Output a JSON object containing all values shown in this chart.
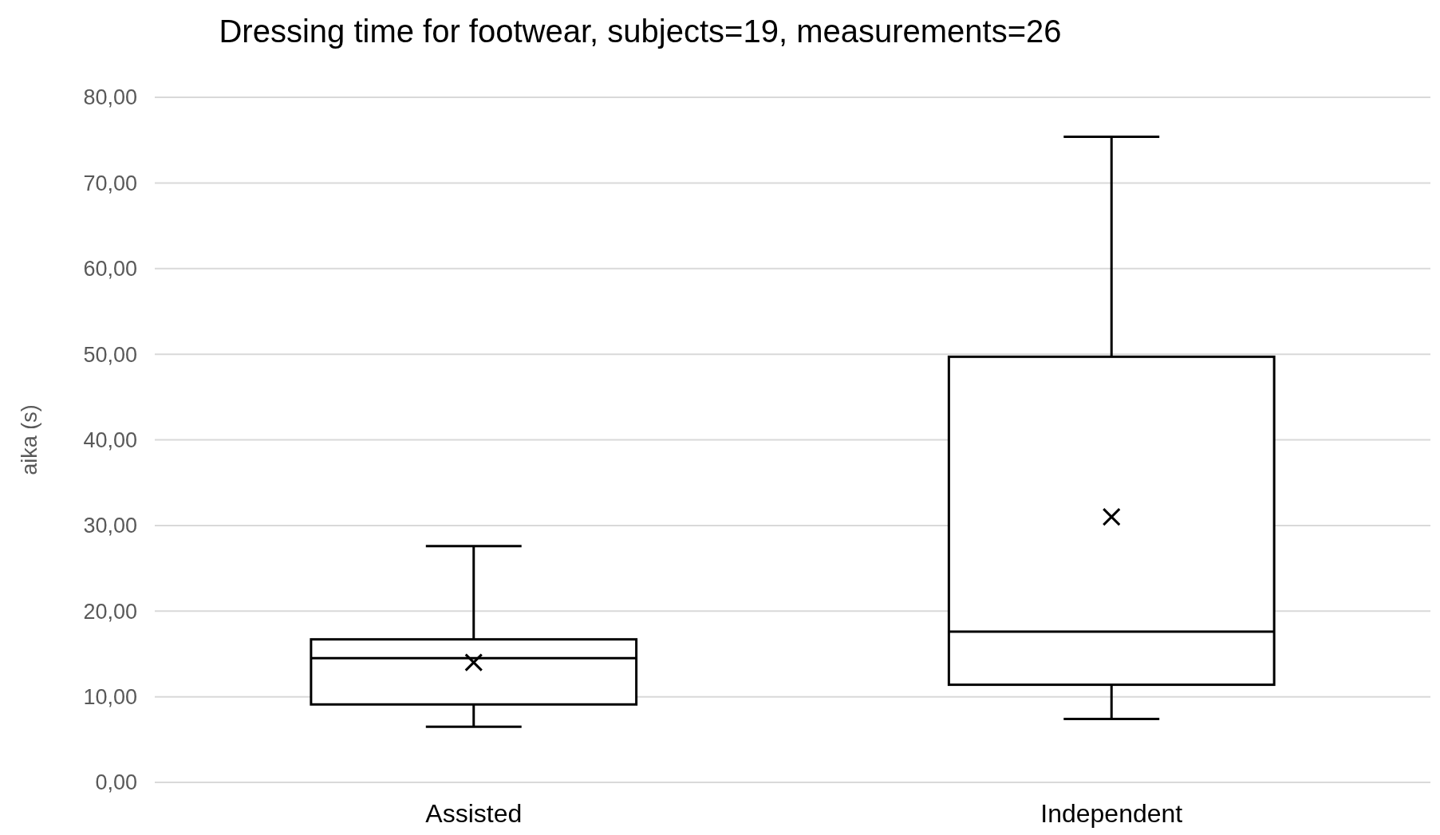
{
  "chart_data": {
    "type": "box",
    "title": "Dressing time for footwear,  subjects=19, measurements=26",
    "ylabel": "aika (s)",
    "categories": [
      "Assisted",
      "Independent"
    ],
    "boxes": [
      {
        "low": 6.5,
        "q1": 9.1,
        "median": 14.5,
        "q3": 16.7,
        "high": 27.6,
        "mean": 14.0
      },
      {
        "low": 7.4,
        "q1": 11.4,
        "median": 17.6,
        "q3": 49.7,
        "high": 75.4,
        "mean": 31.0
      }
    ],
    "color": "#000000",
    "ylim": [
      0,
      80
    ],
    "yticks": [
      {
        "value": 0,
        "label": "0,00"
      },
      {
        "value": 10,
        "label": "10,00"
      },
      {
        "value": 20,
        "label": "20,00"
      },
      {
        "value": 30,
        "label": "30,00"
      },
      {
        "value": 40,
        "label": "40,00"
      },
      {
        "value": 50,
        "label": "50,00"
      },
      {
        "value": 60,
        "label": "60,00"
      },
      {
        "value": 70,
        "label": "70,00"
      },
      {
        "value": 80,
        "label": "80,00"
      }
    ],
    "grid": "y",
    "marker": "cross"
  }
}
